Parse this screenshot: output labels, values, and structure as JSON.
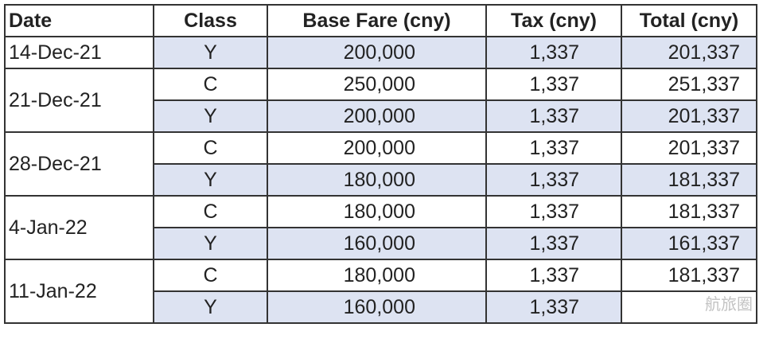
{
  "headers": {
    "date": "Date",
    "class": "Class",
    "base_fare": "Base Fare  (cny)",
    "tax": "Tax  (cny)",
    "total": "Total  (cny)"
  },
  "groups": [
    {
      "date": "14-Dec-21",
      "rows": [
        {
          "class": "Y",
          "base_fare": "200,000",
          "tax": "1,337",
          "total": "201,337"
        }
      ]
    },
    {
      "date": "21-Dec-21",
      "rows": [
        {
          "class": "C",
          "base_fare": "250,000",
          "tax": "1,337",
          "total": "251,337"
        },
        {
          "class": "Y",
          "base_fare": "200,000",
          "tax": "1,337",
          "total": "201,337"
        }
      ]
    },
    {
      "date": "28-Dec-21",
      "rows": [
        {
          "class": "C",
          "base_fare": "200,000",
          "tax": "1,337",
          "total": "201,337"
        },
        {
          "class": "Y",
          "base_fare": "180,000",
          "tax": "1,337",
          "total": "181,337"
        }
      ]
    },
    {
      "date": "4-Jan-22",
      "rows": [
        {
          "class": "C",
          "base_fare": "180,000",
          "tax": "1,337",
          "total": "181,337"
        },
        {
          "class": "Y",
          "base_fare": "160,000",
          "tax": "1,337",
          "total": "161,337"
        }
      ]
    },
    {
      "date": "11-Jan-22",
      "rows": [
        {
          "class": "C",
          "base_fare": "180,000",
          "tax": "1,337",
          "total": "181,337"
        },
        {
          "class": "Y",
          "base_fare": "160,000",
          "tax": "1,337",
          "total": ""
        }
      ]
    }
  ],
  "watermark": "航旅圈"
}
